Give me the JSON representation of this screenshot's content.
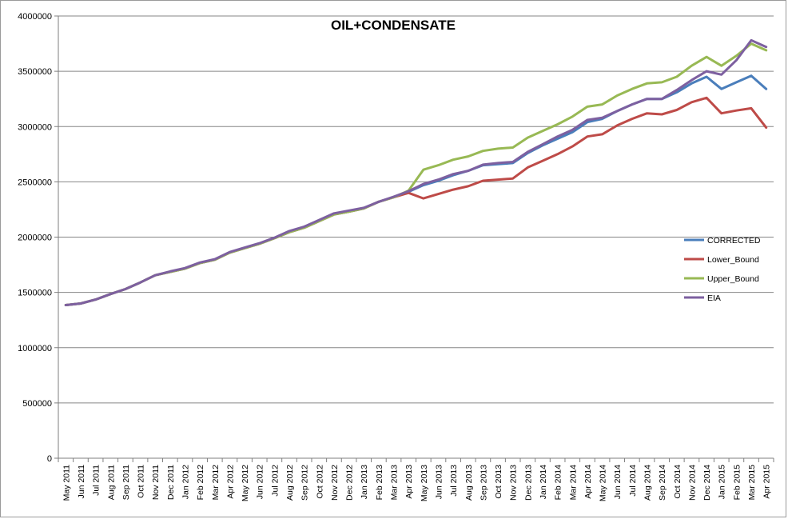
{
  "chart_data": {
    "type": "line",
    "title": "OIL+CONDENSATE",
    "xlabel": "",
    "ylabel": "",
    "ylim": [
      0,
      4000000
    ],
    "yticks": [
      "0",
      "500000",
      "1000000",
      "1500000",
      "2000000",
      "2500000",
      "3000000",
      "3500000",
      "4000000"
    ],
    "grid": "horizontal",
    "legend_position": "right",
    "x": [
      "May 2011",
      "Jun 2011",
      "Jul 2011",
      "Aug 2011",
      "Sep 2011",
      "Oct 2011",
      "Nov 2011",
      "Dec 2011",
      "Jan 2012",
      "Feb 2012",
      "Mar 2012",
      "Apr 2012",
      "May 2012",
      "Jun 2012",
      "Jul 2012",
      "Aug 2012",
      "Sep 2012",
      "Oct 2012",
      "Nov 2012",
      "Dec 2012",
      "Jan 2013",
      "Feb 2013",
      "Mar 2013",
      "Apr 2013",
      "May 2013",
      "Jun 2013",
      "Jul 2013",
      "Aug 2013",
      "Sep 2013",
      "Oct 2013",
      "Nov 2013",
      "Dec 2013",
      "Jan 2014",
      "Feb 2014",
      "Mar 2014",
      "Apr 2014",
      "May 2014",
      "Jun 2014",
      "Jul 2014",
      "Aug 2014",
      "Sep 2014",
      "Oct 2014",
      "Nov 2014",
      "Dec 2014",
      "Jan 2015",
      "Feb 2015",
      "Mar 2015",
      "Apr 2015"
    ],
    "series": [
      {
        "name": "CORRECTED",
        "color": "#4a7ebb",
        "values": [
          1385000,
          1400000,
          1435000,
          1485000,
          1530000,
          1590000,
          1655000,
          1685000,
          1715000,
          1765000,
          1795000,
          1860000,
          1900000,
          1940000,
          1990000,
          2045000,
          2085000,
          2145000,
          2205000,
          2230000,
          2260000,
          2320000,
          2360000,
          2410000,
          2470000,
          2510000,
          2560000,
          2600000,
          2650000,
          2660000,
          2670000,
          2760000,
          2830000,
          2890000,
          2950000,
          3040000,
          3070000,
          3140000,
          3200000,
          3250000,
          3250000,
          3310000,
          3390000,
          3450000,
          3340000,
          3400000,
          3460000,
          3340000
        ]
      },
      {
        "name": "Lower_Bound",
        "color": "#be4b48",
        "values": [
          1385000,
          1400000,
          1435000,
          1485000,
          1530000,
          1590000,
          1655000,
          1685000,
          1715000,
          1765000,
          1795000,
          1860000,
          1900000,
          1940000,
          1990000,
          2045000,
          2085000,
          2145000,
          2205000,
          2230000,
          2260000,
          2320000,
          2360000,
          2400000,
          2350000,
          2390000,
          2430000,
          2460000,
          2510000,
          2520000,
          2530000,
          2630000,
          2690000,
          2750000,
          2820000,
          2910000,
          2930000,
          3010000,
          3070000,
          3120000,
          3110000,
          3150000,
          3220000,
          3260000,
          3120000,
          3145000,
          3165000,
          2990000
        ]
      },
      {
        "name": "Upper_Bound",
        "color": "#98b954",
        "values": [
          1385000,
          1400000,
          1435000,
          1485000,
          1530000,
          1590000,
          1655000,
          1685000,
          1715000,
          1765000,
          1795000,
          1860000,
          1900000,
          1940000,
          1990000,
          2045000,
          2085000,
          2145000,
          2205000,
          2230000,
          2260000,
          2320000,
          2360000,
          2420000,
          2610000,
          2650000,
          2700000,
          2730000,
          2780000,
          2800000,
          2810000,
          2900000,
          2960000,
          3020000,
          3090000,
          3180000,
          3200000,
          3280000,
          3340000,
          3390000,
          3400000,
          3450000,
          3550000,
          3630000,
          3550000,
          3640000,
          3750000,
          3690000
        ]
      },
      {
        "name": "EIA",
        "color": "#7d60a0",
        "values": [
          1385000,
          1400000,
          1435000,
          1485000,
          1530000,
          1590000,
          1655000,
          1690000,
          1720000,
          1770000,
          1800000,
          1865000,
          1905000,
          1945000,
          1995000,
          2055000,
          2095000,
          2155000,
          2215000,
          2240000,
          2265000,
          2320000,
          2365000,
          2415000,
          2480000,
          2520000,
          2570000,
          2600000,
          2655000,
          2670000,
          2680000,
          2770000,
          2840000,
          2910000,
          2970000,
          3060000,
          3080000,
          3140000,
          3200000,
          3250000,
          3250000,
          3330000,
          3420000,
          3500000,
          3470000,
          3600000,
          3780000,
          3720000
        ]
      }
    ]
  }
}
